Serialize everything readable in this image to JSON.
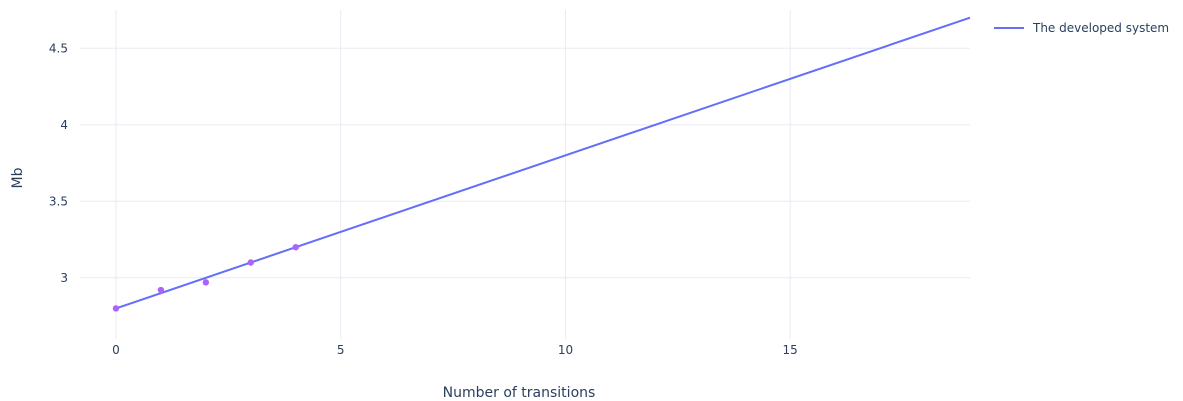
{
  "chart_data": {
    "type": "line",
    "title": "",
    "xlabel": "Number of transitions",
    "ylabel": "Mb",
    "xlim": [
      -0.8,
      19
    ],
    "ylim": [
      2.6,
      4.75
    ],
    "xticks": [
      0,
      5,
      10,
      15
    ],
    "xtick_labels": [
      "0",
      "5",
      "10",
      "15"
    ],
    "yticks": [
      3,
      3.5,
      4,
      4.5
    ],
    "ytick_labels": [
      "3",
      "3.5",
      "4",
      "4.5"
    ],
    "grid": true,
    "legend_position": "top-right",
    "series": [
      {
        "name": "The developed system",
        "kind": "line",
        "color": "#636efa",
        "x": [
          0,
          19
        ],
        "y": [
          2.8,
          4.7
        ]
      },
      {
        "name": "",
        "kind": "markers",
        "color": "#ab63fa",
        "x": [
          0,
          1,
          2,
          3,
          4
        ],
        "y": [
          2.8,
          2.92,
          2.97,
          3.1,
          3.2
        ]
      }
    ]
  }
}
